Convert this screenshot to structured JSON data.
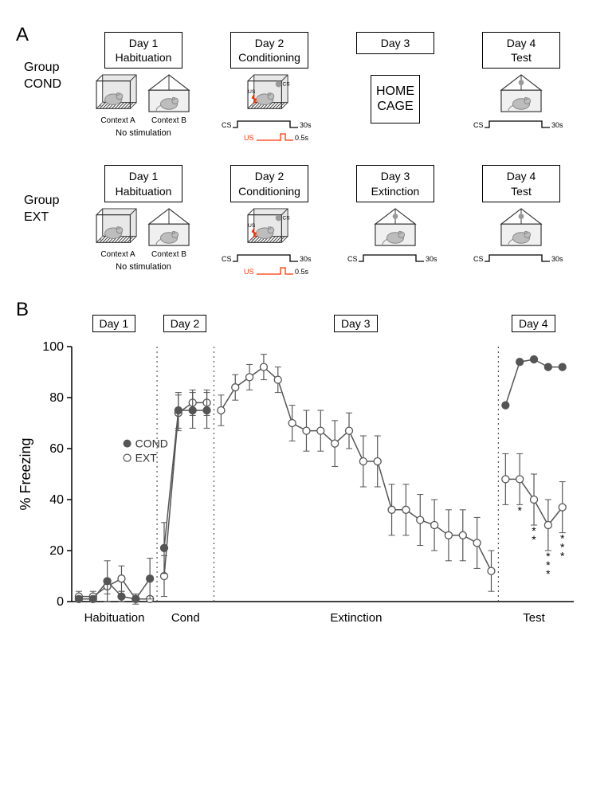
{
  "panelA": {
    "label": "A",
    "groups": [
      {
        "name": "Group\nCOND",
        "days": [
          {
            "title": "Day 1\nHabituation",
            "boxes": [
              "A",
              "B"
            ],
            "contextLabels": [
              "Context A",
              "Context B"
            ],
            "note": "No stimulation"
          },
          {
            "title": "Day 2\nConditioning",
            "boxes": [
              "A_cs"
            ],
            "csus": true
          },
          {
            "title": "Day 3",
            "homecage": "HOME\nCAGE"
          },
          {
            "title": "Day 4\nTest",
            "boxes": [
              "B_cs"
            ],
            "cs_only": true
          }
        ]
      },
      {
        "name": "Group\nEXT",
        "days": [
          {
            "title": "Day 1\nHabituation",
            "boxes": [
              "A",
              "B"
            ],
            "contextLabels": [
              "Context A",
              "Context B"
            ],
            "note": "No stimulation"
          },
          {
            "title": "Day 2\nConditioning",
            "boxes": [
              "A_cs"
            ],
            "csus": true
          },
          {
            "title": "Day 3\nExtinction",
            "boxes": [
              "B_cs"
            ],
            "cs_only": true
          },
          {
            "title": "Day 4\nTest",
            "boxes": [
              "B_cs"
            ],
            "cs_only": true
          }
        ]
      }
    ]
  },
  "panelB": {
    "label": "B",
    "ylabel": "% Freezing",
    "ylim": [
      0,
      100
    ],
    "ytick_step": 20,
    "legend": {
      "cond": "COND",
      "ext": "EXT"
    },
    "colors": {
      "cond_fill": "#555555",
      "ext_fill": "#ffffff",
      "stroke": "#555555",
      "dotted": "#555555",
      "text": "#000000"
    },
    "marker_radius": 4.5,
    "error_cap": 4,
    "sections": [
      {
        "name": "Habituation",
        "tag": "Day 1",
        "x_range": [
          1,
          6
        ],
        "bottom_label": "Habituation"
      },
      {
        "name": "Cond",
        "tag": "Day 2",
        "x_range": [
          7,
          10
        ],
        "bottom_label": "Cond"
      },
      {
        "name": "Extinction",
        "tag": "Day 3",
        "x_range": [
          11,
          30
        ],
        "bottom_label": "Extinction"
      },
      {
        "name": "Test",
        "tag": "Day 4",
        "x_range": [
          31,
          35
        ],
        "bottom_label": "Test"
      }
    ],
    "dividers_x": [
      6.5,
      10.5,
      30.5
    ],
    "series": {
      "cond": {
        "day1": {
          "x": [
            1,
            2,
            3,
            4,
            5,
            6
          ],
          "y": [
            1,
            1,
            8,
            2,
            1,
            9
          ],
          "err": [
            1,
            1,
            8,
            2,
            2,
            8
          ]
        },
        "day2": {
          "x": [
            7,
            8,
            9,
            10
          ],
          "y": [
            21,
            75,
            75,
            75
          ],
          "err": [
            10,
            7,
            7,
            7
          ]
        },
        "day4": {
          "x": [
            31,
            32,
            33,
            34,
            35
          ],
          "y": [
            77,
            94,
            95,
            92,
            92
          ],
          "err": [
            0,
            0,
            0,
            0,
            0
          ]
        }
      },
      "ext": {
        "day1": {
          "x": [
            1,
            2,
            3,
            4,
            5,
            6
          ],
          "y": [
            2,
            2,
            6,
            9,
            1,
            1
          ],
          "err": [
            2,
            2,
            3,
            5,
            1,
            1
          ]
        },
        "day2": {
          "x": [
            7,
            8,
            9,
            10
          ],
          "y": [
            10,
            74,
            78,
            78
          ],
          "err": [
            8,
            7,
            5,
            5
          ]
        },
        "day3": {
          "x": [
            11,
            12,
            13,
            14,
            15,
            16,
            17,
            18,
            19,
            20,
            21,
            22,
            23,
            24,
            25,
            26,
            27,
            28,
            29,
            30
          ],
          "y": [
            75,
            84,
            88,
            92,
            87,
            70,
            67,
            67,
            62,
            67,
            55,
            55,
            36,
            36,
            32,
            30,
            26,
            26,
            23,
            12
          ],
          "err": [
            6,
            5,
            5,
            5,
            5,
            7,
            8,
            8,
            9,
            7,
            10,
            10,
            10,
            10,
            10,
            10,
            10,
            10,
            10,
            8
          ]
        },
        "day4": {
          "x": [
            31,
            32,
            33,
            34,
            35
          ],
          "y": [
            48,
            48,
            40,
            30,
            37
          ],
          "err": [
            10,
            10,
            10,
            10,
            10
          ]
        }
      }
    },
    "sig": [
      {
        "x": 32,
        "label": "*"
      },
      {
        "x": 33,
        "label": "**"
      },
      {
        "x": 34,
        "label": "***"
      },
      {
        "x": 35,
        "label": "***"
      }
    ]
  }
}
